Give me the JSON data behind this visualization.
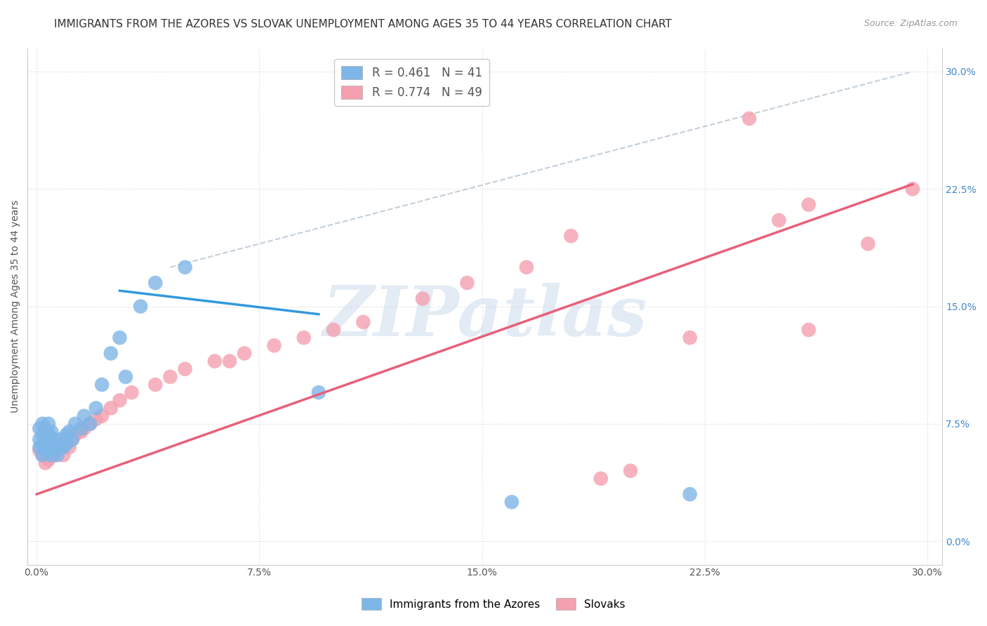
{
  "title": "IMMIGRANTS FROM THE AZORES VS SLOVAK UNEMPLOYMENT AMONG AGES 35 TO 44 YEARS CORRELATION CHART",
  "source": "Source: ZipAtlas.com",
  "ylabel": "Unemployment Among Ages 35 to 44 years",
  "xlim": [
    -0.003,
    0.305
  ],
  "ylim": [
    -0.015,
    0.315
  ],
  "xticks": [
    0.0,
    0.075,
    0.15,
    0.225,
    0.3
  ],
  "xtick_labels": [
    "0.0%",
    "7.5%",
    "15.0%",
    "22.5%",
    "30.0%"
  ],
  "yticks": [
    0.0,
    0.075,
    0.15,
    0.225,
    0.3
  ],
  "ytick_labels": [
    "0.0%",
    "7.5%",
    "15.0%",
    "22.5%",
    "30.0%"
  ],
  "series1_name": "Immigrants from the Azores",
  "series1_color": "#7EB6E8",
  "series1_R": 0.461,
  "series1_N": 41,
  "series2_name": "Slovaks",
  "series2_color": "#F4A0B0",
  "series2_R": 0.774,
  "series2_N": 49,
  "blue_scatter_x": [
    0.001,
    0.001,
    0.001,
    0.002,
    0.002,
    0.002,
    0.002,
    0.003,
    0.003,
    0.003,
    0.004,
    0.004,
    0.004,
    0.005,
    0.005,
    0.005,
    0.006,
    0.006,
    0.007,
    0.007,
    0.008,
    0.009,
    0.01,
    0.01,
    0.011,
    0.012,
    0.013,
    0.015,
    0.016,
    0.018,
    0.02,
    0.022,
    0.025,
    0.028,
    0.03,
    0.035,
    0.04,
    0.05,
    0.095,
    0.16,
    0.22
  ],
  "blue_scatter_y": [
    0.06,
    0.065,
    0.072,
    0.055,
    0.062,
    0.068,
    0.075,
    0.058,
    0.065,
    0.07,
    0.06,
    0.068,
    0.075,
    0.055,
    0.062,
    0.07,
    0.058,
    0.065,
    0.055,
    0.06,
    0.065,
    0.06,
    0.062,
    0.068,
    0.07,
    0.065,
    0.075,
    0.072,
    0.08,
    0.075,
    0.085,
    0.1,
    0.12,
    0.13,
    0.105,
    0.15,
    0.165,
    0.175,
    0.095,
    0.025,
    0.03
  ],
  "pink_scatter_x": [
    0.001,
    0.002,
    0.002,
    0.003,
    0.003,
    0.004,
    0.004,
    0.005,
    0.005,
    0.006,
    0.006,
    0.007,
    0.008,
    0.009,
    0.01,
    0.011,
    0.012,
    0.013,
    0.015,
    0.016,
    0.018,
    0.02,
    0.022,
    0.025,
    0.028,
    0.032,
    0.04,
    0.045,
    0.05,
    0.06,
    0.065,
    0.07,
    0.08,
    0.09,
    0.1,
    0.11,
    0.13,
    0.145,
    0.165,
    0.18,
    0.19,
    0.2,
    0.22,
    0.24,
    0.25,
    0.26,
    0.26,
    0.28,
    0.295
  ],
  "pink_scatter_y": [
    0.058,
    0.055,
    0.06,
    0.05,
    0.058,
    0.052,
    0.058,
    0.055,
    0.06,
    0.055,
    0.062,
    0.058,
    0.06,
    0.055,
    0.065,
    0.06,
    0.065,
    0.068,
    0.07,
    0.072,
    0.075,
    0.078,
    0.08,
    0.085,
    0.09,
    0.095,
    0.1,
    0.105,
    0.11,
    0.115,
    0.115,
    0.12,
    0.125,
    0.13,
    0.135,
    0.14,
    0.155,
    0.165,
    0.175,
    0.195,
    0.04,
    0.045,
    0.13,
    0.27,
    0.205,
    0.215,
    0.135,
    0.19,
    0.225
  ],
  "background_color": "#FFFFFF",
  "grid_color": "#DDDDDD",
  "watermark_text": "ZIPatlas",
  "watermark_color": "#C8D8EA",
  "title_fontsize": 11,
  "axis_label_fontsize": 10,
  "tick_fontsize": 10,
  "legend_fontsize": 12,
  "blue_line_x": [
    0.028,
    0.095
  ],
  "blue_line_y": [
    0.16,
    0.145
  ],
  "pink_line_x": [
    0.0,
    0.295
  ],
  "pink_line_y": [
    0.03,
    0.228
  ],
  "diag_line_x": [
    0.045,
    0.295
  ],
  "diag_line_y": [
    0.175,
    0.3
  ]
}
